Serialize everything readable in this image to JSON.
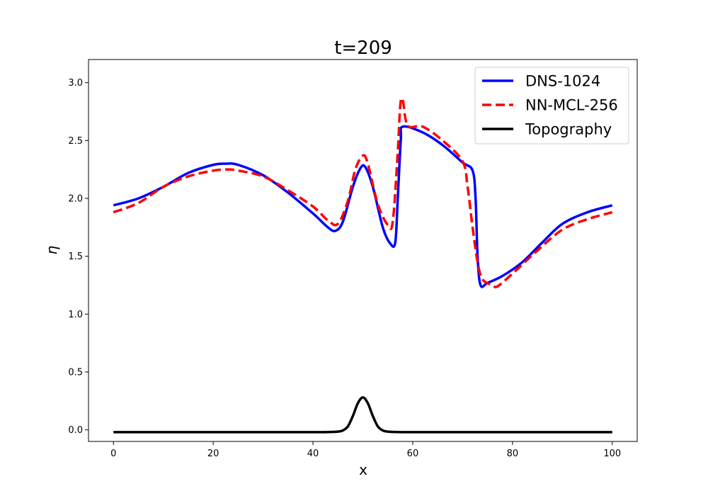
{
  "chart_data": {
    "type": "line",
    "title": "t=209",
    "xlabel": "x",
    "ylabel": "η",
    "xlim": [
      -5,
      105
    ],
    "ylim": [
      -0.1,
      3.2
    ],
    "xticks": [
      0,
      20,
      40,
      60,
      80,
      100
    ],
    "xtick_labels": [
      "0",
      "20",
      "40",
      "60",
      "80",
      "100"
    ],
    "yticks": [
      0.0,
      0.5,
      1.0,
      1.5,
      2.0,
      2.5,
      3.0
    ],
    "ytick_labels": [
      "0.0",
      "0.5",
      "1.0",
      "1.5",
      "2.0",
      "2.5",
      "3.0"
    ],
    "grid": false,
    "legend_position": "top-right",
    "series": [
      {
        "name": "DNS-1024",
        "color": "#0000ff",
        "dash": "solid",
        "x": [
          0,
          5,
          10,
          15,
          20,
          22.5,
          25,
          30,
          35,
          40,
          43,
          44.5,
          46,
          48,
          49.5,
          50.5,
          52,
          54,
          55.5,
          56.5,
          57,
          57.6,
          58,
          62,
          66,
          70,
          72,
          72.6,
          73,
          73.6,
          75,
          78,
          82,
          86,
          90,
          95,
          100
        ],
        "y": [
          1.94,
          2.0,
          2.1,
          2.22,
          2.29,
          2.3,
          2.29,
          2.2,
          2.05,
          1.87,
          1.75,
          1.72,
          1.8,
          2.1,
          2.26,
          2.27,
          2.1,
          1.75,
          1.61,
          1.62,
          2.0,
          2.5,
          2.62,
          2.57,
          2.46,
          2.31,
          2.24,
          2.0,
          1.5,
          1.25,
          1.27,
          1.33,
          1.45,
          1.62,
          1.78,
          1.88,
          1.94
        ]
      },
      {
        "name": "NN-MCL-256",
        "color": "#ff0000",
        "dash": "dashed",
        "x": [
          0,
          5,
          10,
          15,
          20,
          23,
          25,
          30,
          35,
          40,
          43,
          45,
          47,
          48.5,
          50,
          51,
          53,
          55,
          56,
          57,
          57.5,
          58,
          59,
          62,
          66,
          70,
          71,
          72,
          73,
          74,
          76,
          77,
          80,
          85,
          90,
          95,
          100
        ],
        "y": [
          1.88,
          1.96,
          2.1,
          2.19,
          2.24,
          2.25,
          2.24,
          2.19,
          2.07,
          1.93,
          1.81,
          1.78,
          1.98,
          2.25,
          2.37,
          2.3,
          1.95,
          1.77,
          1.8,
          2.4,
          2.8,
          2.85,
          2.63,
          2.62,
          2.5,
          2.32,
          2.1,
          1.75,
          1.45,
          1.3,
          1.25,
          1.24,
          1.35,
          1.55,
          1.73,
          1.82,
          1.88
        ]
      },
      {
        "name": "Topography",
        "color": "#000000",
        "dash": "solid",
        "x": [
          0,
          10,
          20,
          30,
          40,
          43,
          45,
          46,
          47,
          48,
          49,
          50,
          51,
          52,
          53,
          54,
          55,
          57,
          60,
          70,
          80,
          90,
          100
        ],
        "y": [
          -0.02,
          -0.02,
          -0.02,
          -0.02,
          -0.02,
          -0.019,
          -0.015,
          -0.005,
          0.03,
          0.12,
          0.23,
          0.28,
          0.23,
          0.12,
          0.03,
          -0.005,
          -0.015,
          -0.019,
          -0.02,
          -0.02,
          -0.02,
          -0.02,
          -0.02
        ]
      }
    ]
  }
}
